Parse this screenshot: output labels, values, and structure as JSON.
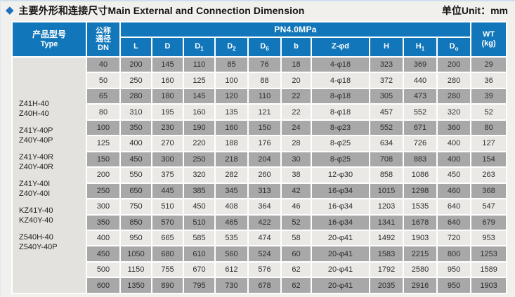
{
  "page": {
    "diamond_icon": "◆",
    "title": "主要外形和连接尺寸Main External and Connection Dimension",
    "unit_label": "单位Unit：mm"
  },
  "colors": {
    "header_blue": "#1277ba",
    "row_dark": "#a8a8a8",
    "row_light": "#ebe9e6",
    "type_column_bg": "#e4e2de",
    "page_bg": "#f2f0ec",
    "accent_blue": "#1d6fc0"
  },
  "table": {
    "header": {
      "type_label_cn": "产品型号",
      "type_label_en": "Type",
      "dn_lines": [
        "公称",
        "通径",
        "DN"
      ],
      "pressure_group": "PN4.0MPa",
      "wt_label": "WT",
      "wt_unit": "(kg)",
      "columns": [
        {
          "main": "L",
          "sub": ""
        },
        {
          "main": "D",
          "sub": ""
        },
        {
          "main": "D",
          "sub": "1"
        },
        {
          "main": "D",
          "sub": "2"
        },
        {
          "main": "D",
          "sub": "6"
        },
        {
          "main": "b",
          "sub": ""
        },
        {
          "main": "Z-φd",
          "sub": ""
        },
        {
          "main": "H",
          "sub": ""
        },
        {
          "main": "H",
          "sub": "1"
        },
        {
          "main": "D",
          "sub": "o"
        }
      ]
    },
    "type_models": [
      [
        "Z41H-40",
        "Z40H-40"
      ],
      [
        "Z41Y-40P",
        "Z40Y-40P"
      ],
      [
        "Z41Y-40R",
        "Z40Y-40R"
      ],
      [
        "Z41Y-40I",
        "Z40Y-40I"
      ],
      [
        "KZ41Y-40",
        "KZ40Y-40"
      ],
      [
        "Z540H-40",
        "Z540Y-40P"
      ]
    ],
    "rows": [
      {
        "dn": "40",
        "values": [
          "200",
          "145",
          "110",
          "85",
          "76",
          "18",
          "4-φ18",
          "323",
          "369",
          "200",
          "29"
        ]
      },
      {
        "dn": "50",
        "values": [
          "250",
          "160",
          "125",
          "100",
          "88",
          "20",
          "4-φ18",
          "372",
          "440",
          "280",
          "36"
        ]
      },
      {
        "dn": "65",
        "values": [
          "280",
          "180",
          "145",
          "120",
          "110",
          "22",
          "8-φ18",
          "305",
          "473",
          "280",
          "39"
        ]
      },
      {
        "dn": "80",
        "values": [
          "310",
          "195",
          "160",
          "135",
          "121",
          "22",
          "8-φ18",
          "457",
          "552",
          "320",
          "52"
        ]
      },
      {
        "dn": "100",
        "values": [
          "350",
          "230",
          "190",
          "160",
          "150",
          "24",
          "8-φ23",
          "552",
          "671",
          "360",
          "80"
        ]
      },
      {
        "dn": "125",
        "values": [
          "400",
          "270",
          "220",
          "188",
          "176",
          "28",
          "8-φ25",
          "634",
          "726",
          "400",
          "127"
        ]
      },
      {
        "dn": "150",
        "values": [
          "450",
          "300",
          "250",
          "218",
          "204",
          "30",
          "8-φ25",
          "708",
          "883",
          "400",
          "154"
        ]
      },
      {
        "dn": "200",
        "values": [
          "550",
          "375",
          "320",
          "282",
          "260",
          "38",
          "12-φ30",
          "858",
          "1086",
          "450",
          "263"
        ]
      },
      {
        "dn": "250",
        "values": [
          "650",
          "445",
          "385",
          "345",
          "313",
          "42",
          "16-φ34",
          "1015",
          "1298",
          "460",
          "368"
        ]
      },
      {
        "dn": "300",
        "values": [
          "750",
          "510",
          "450",
          "408",
          "364",
          "46",
          "16-φ34",
          "1203",
          "1535",
          "640",
          "547"
        ]
      },
      {
        "dn": "350",
        "values": [
          "850",
          "570",
          "510",
          "465",
          "422",
          "52",
          "16-φ34",
          "1341",
          "1678",
          "640",
          "679"
        ]
      },
      {
        "dn": "400",
        "values": [
          "950",
          "665",
          "585",
          "535",
          "474",
          "58",
          "20-φ41",
          "1492",
          "1903",
          "720",
          "953"
        ]
      },
      {
        "dn": "450",
        "values": [
          "1050",
          "680",
          "610",
          "560",
          "524",
          "60",
          "20-φ41",
          "1583",
          "2215",
          "800",
          "1253"
        ]
      },
      {
        "dn": "500",
        "values": [
          "1150",
          "755",
          "670",
          "612",
          "576",
          "62",
          "20-φ41",
          "1792",
          "2580",
          "950",
          "1589"
        ]
      },
      {
        "dn": "600",
        "values": [
          "1350",
          "890",
          "795",
          "730",
          "678",
          "62",
          "20-φ41",
          "2035",
          "2916",
          "950",
          "1903"
        ]
      }
    ]
  }
}
